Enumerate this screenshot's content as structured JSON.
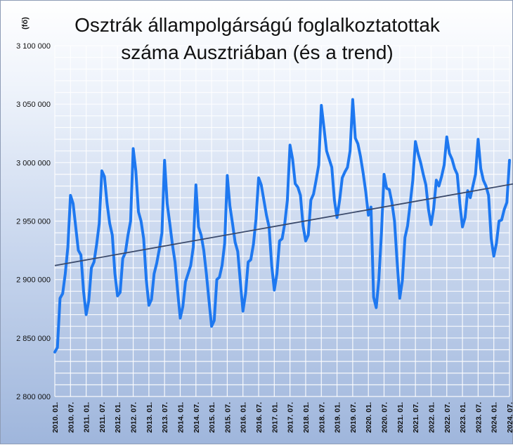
{
  "chart_data": {
    "type": "line",
    "title_lines": [
      "Osztrák állampolgárságú foglalkoztatottak",
      "száma Ausztriában (és a trend)"
    ],
    "ylabel": "(fő)",
    "ylim": [
      2800000,
      3100000
    ],
    "yticks": [
      2800000,
      2850000,
      2900000,
      2950000,
      3000000,
      3050000,
      3100000
    ],
    "ytick_labels": [
      "2 800 000",
      "2 850 000",
      "2 900 000",
      "2 950 000",
      "3 000 000",
      "3 050 000",
      "3 100 000"
    ],
    "xtick_labels": [
      "2010. 01.",
      "2010. 07.",
      "2011. 01.",
      "2011. 07.",
      "2012. 01.",
      "2012. 07.",
      "2013. 01.",
      "2013. 07.",
      "2014. 01.",
      "2014. 07.",
      "2015. 01.",
      "2015. 07.",
      "2016. 01.",
      "2016. 07.",
      "2017. 01.",
      "2017. 07.",
      "2018. 01.",
      "2018. 07.",
      "2019. 01.",
      "2019. 07.",
      "2020. 01.",
      "2020. 07.",
      "2021. 01.",
      "2021. 07.",
      "2022. 01.",
      "2022. 07.",
      "2023. 01.",
      "2023. 07.",
      "2024. 01.",
      "2024. 07."
    ],
    "grid": true,
    "colors": {
      "series": "#1e78f0",
      "trend": "#3b4a6b",
      "grid": "#ffffff"
    },
    "series": [
      {
        "values": [
          2838000,
          2842000,
          2884000,
          2888000,
          2905000,
          2928000,
          2972000,
          2965000,
          2945000,
          2925000,
          2921000,
          2890000,
          2870000,
          2882000,
          2910000,
          2915000,
          2930000,
          2948000,
          2993000,
          2988000,
          2965000,
          2948000,
          2938000,
          2905000,
          2886000,
          2889000,
          2918000,
          2923000,
          2938000,
          2950000,
          3012000,
          2993000,
          2958000,
          2950000,
          2935000,
          2900000,
          2878000,
          2883000,
          2905000,
          2914000,
          2926000,
          2940000,
          3002000,
          2965000,
          2948000,
          2930000,
          2915000,
          2890000,
          2867000,
          2877000,
          2898000,
          2905000,
          2912000,
          2928000,
          2981000,
          2945000,
          2938000,
          2925000,
          2905000,
          2882000,
          2860000,
          2865000,
          2900000,
          2902000,
          2912000,
          2931000,
          2989000,
          2963000,
          2948000,
          2932000,
          2924000,
          2898000,
          2873000,
          2888000,
          2915000,
          2917000,
          2930000,
          2952000,
          2987000,
          2981000,
          2968000,
          2955000,
          2945000,
          2912000,
          2891000,
          2905000,
          2933000,
          2935000,
          2948000,
          2968000,
          3015000,
          3003000,
          2982000,
          2979000,
          2972000,
          2946000,
          2933000,
          2938000,
          2968000,
          2973000,
          2985000,
          2998000,
          3049000,
          3030000,
          3010000,
          3003000,
          2996000,
          2968000,
          2953000,
          2968000,
          2987000,
          2992000,
          2996000,
          3010000,
          3054000,
          3021000,
          3016000,
          3005000,
          2991000,
          2975000,
          2955000,
          2962000,
          2885000,
          2876000,
          2900000,
          2940000,
          2990000,
          2978000,
          2977000,
          2966000,
          2950000,
          2915000,
          2884000,
          2899000,
          2936000,
          2946000,
          2965000,
          2985000,
          3018000,
          3008000,
          3000000,
          2990000,
          2981000,
          2960000,
          2947000,
          2961000,
          2985000,
          2980000,
          2988000,
          2998000,
          3022000,
          3008000,
          3003000,
          2995000,
          2990000,
          2965000,
          2945000,
          2953000,
          2976000,
          2970000,
          2980000,
          2990000,
          3020000,
          2995000,
          2985000,
          2980000,
          2972000,
          2935000,
          2920000,
          2931000,
          2950000,
          2951000,
          2960000,
          2966000,
          3002000
        ]
      },
      {
        "values": [
          2912000,
          2986000
        ],
        "x_index": [
          0,
          186
        ]
      }
    ]
  }
}
